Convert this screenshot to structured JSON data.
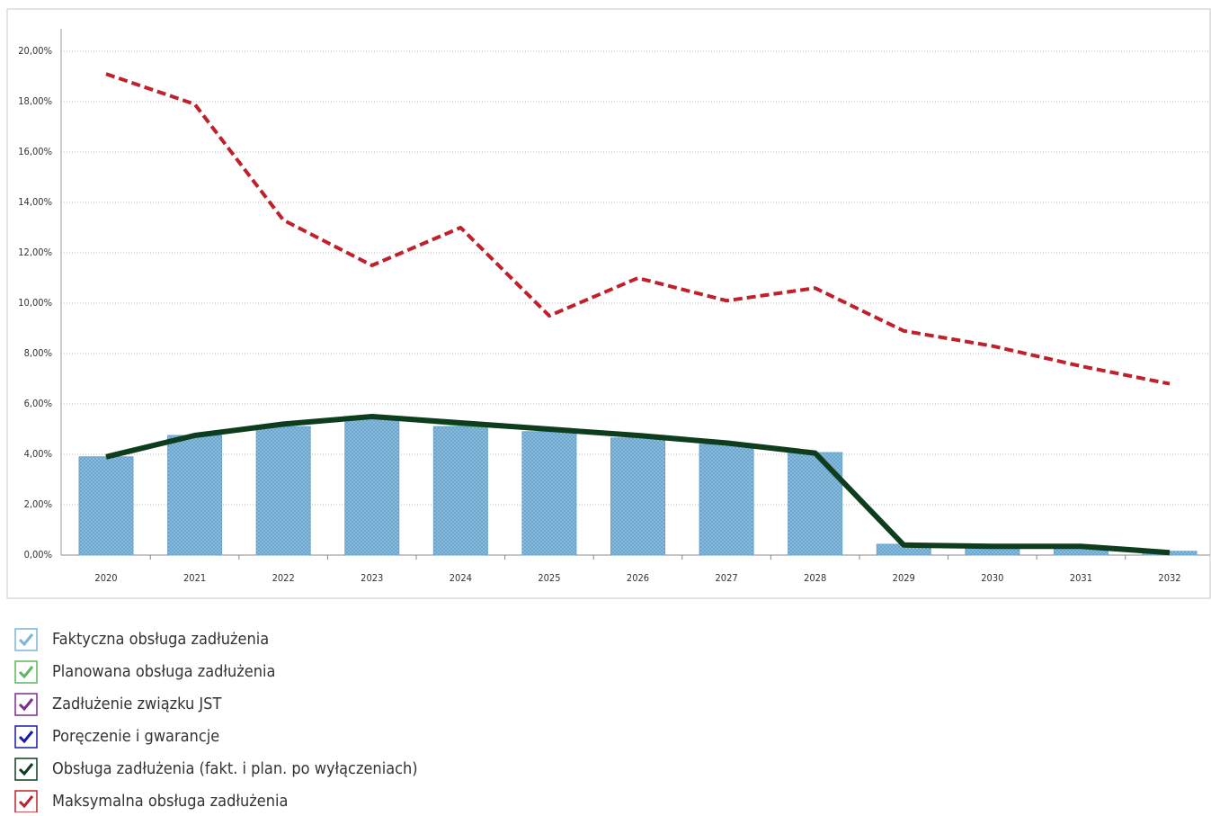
{
  "chart_data": {
    "type": "combo",
    "categories": [
      "2020",
      "2021",
      "2022",
      "2023",
      "2024",
      "2025",
      "2026",
      "2027",
      "2028",
      "2029",
      "2030",
      "2031",
      "2032"
    ],
    "ylim": [
      0,
      20
    ],
    "yticks": [
      {
        "value": 0,
        "label": "0,00%"
      },
      {
        "value": 2,
        "label": "2,00%"
      },
      {
        "value": 4,
        "label": "4,00%"
      },
      {
        "value": 6,
        "label": "6,00%"
      },
      {
        "value": 8,
        "label": "8,00%"
      },
      {
        "value": 10,
        "label": "10,00%"
      },
      {
        "value": 12,
        "label": "12,00%"
      },
      {
        "value": 14,
        "label": "14,00%"
      },
      {
        "value": 16,
        "label": "16,00%"
      },
      {
        "value": 18,
        "label": "18,00%"
      },
      {
        "value": 20,
        "label": "20,00%"
      }
    ],
    "grid": true,
    "legend": "bottom",
    "series": [
      {
        "name": "Faktyczna obsługa zadłużenia",
        "type": "bar",
        "color": "#7db4d8",
        "values": [
          3.9,
          4.75,
          5.1,
          5.4,
          5.1,
          4.9,
          4.65,
          4.4,
          4.07,
          0.43,
          0.3,
          0.3,
          0.15
        ]
      },
      {
        "name": "Planowana obsługa zadłużenia",
        "type": "line",
        "color": "#5cb85c",
        "values": [
          3.9,
          4.75,
          5.15,
          5.45,
          5.15,
          4.95,
          4.7,
          4.45,
          4.05,
          null,
          null,
          null,
          null
        ]
      },
      {
        "name": "Zadłużenie związku JST",
        "type": "line",
        "color": "#7b2d8e",
        "values": [
          null,
          null,
          null,
          null,
          null,
          null,
          null,
          null,
          null,
          null,
          null,
          null,
          null
        ]
      },
      {
        "name": "Poręczenie i gwarancje",
        "type": "line",
        "color": "#1a1aa8",
        "values": [
          null,
          null,
          null,
          null,
          null,
          null,
          null,
          null,
          null,
          null,
          null,
          null,
          null
        ]
      },
      {
        "name": "Obsługa zadłużenia (fakt. i plan. po wyłączeniach)",
        "type": "line",
        "color": "#0e3d1e",
        "values": [
          3.9,
          4.75,
          5.2,
          5.5,
          5.25,
          5.0,
          4.75,
          4.45,
          4.05,
          0.4,
          0.35,
          0.35,
          0.1
        ]
      },
      {
        "name": "Maksymalna obsługa zadłużenia",
        "type": "line",
        "dashed": true,
        "color": "#c0202a",
        "values": [
          19.1,
          17.9,
          13.3,
          11.5,
          13.0,
          9.5,
          11.0,
          10.1,
          10.6,
          8.9,
          8.3,
          7.5,
          6.8
        ]
      }
    ]
  }
}
